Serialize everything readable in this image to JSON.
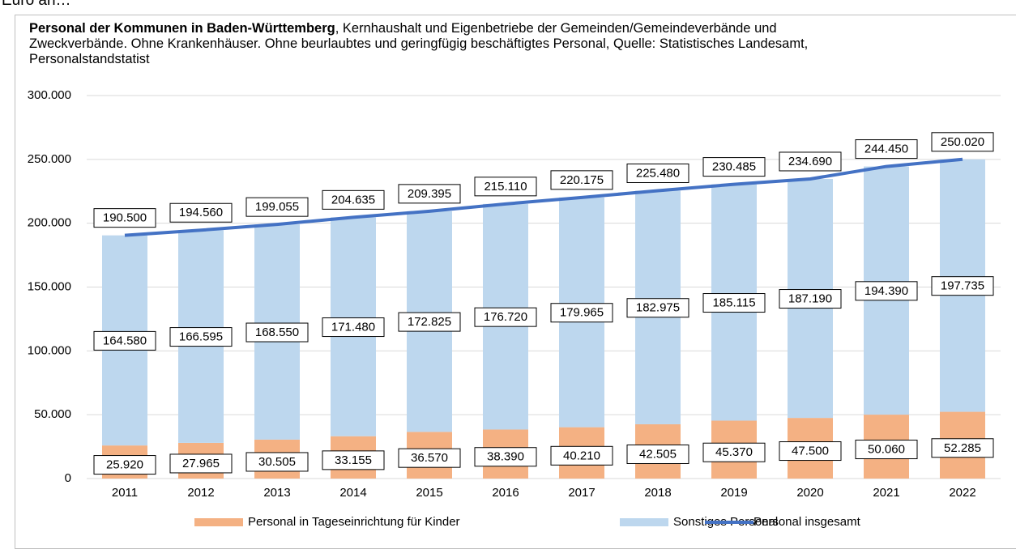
{
  "clipped_text": "Euro an…",
  "chart_data": {
    "type": "bar",
    "stacked": true,
    "title": "Personal der Kommunen in Baden-Württemberg",
    "subtitle": ", Kernhaushalt und Eigenbetriebe der Gemeinden/Gemeindeverbände und Zweckverbände. Ohne Krankenhäuser. Ohne beurlaubtes und geringfügig beschäftigtes Personal, Quelle: Statistisches Landesamt, Personalstandstatist",
    "categories": [
      "2011",
      "2012",
      "2013",
      "2014",
      "2015",
      "2016",
      "2017",
      "2018",
      "2019",
      "2020",
      "2021",
      "2022"
    ],
    "series": [
      {
        "name": "Personal in Tageseinrichtung für Kinder",
        "type": "bar",
        "color": "#f4b183",
        "values": [
          25920,
          27965,
          30505,
          33155,
          36570,
          38390,
          40210,
          42505,
          45370,
          47500,
          50060,
          52285
        ],
        "value_labels": [
          "25.920",
          "27.965",
          "30.505",
          "33.155",
          "36.570",
          "38.390",
          "40.210",
          "42.505",
          "45.370",
          "47.500",
          "50.060",
          "52.285"
        ]
      },
      {
        "name": "Sonstiges Personal",
        "type": "bar",
        "color": "#bdd7ee",
        "values": [
          164580,
          166595,
          168550,
          171480,
          172825,
          176720,
          179965,
          182975,
          185115,
          187190,
          194390,
          197735
        ],
        "value_labels": [
          "164.580",
          "166.595",
          "168.550",
          "171.480",
          "172.825",
          "176.720",
          "179.965",
          "182.975",
          "185.115",
          "187.190",
          "194.390",
          "197.735"
        ]
      },
      {
        "name": "Personal insgesamt",
        "type": "line",
        "color": "#4472c4",
        "values": [
          190500,
          194560,
          199055,
          204635,
          209395,
          215110,
          220175,
          225480,
          230485,
          234690,
          244450,
          250020
        ],
        "value_labels": [
          "190.500",
          "194.560",
          "199.055",
          "204.635",
          "209.395",
          "215.110",
          "220.175",
          "225.480",
          "230.485",
          "234.690",
          "244.450",
          "250.020"
        ]
      }
    ],
    "ylim": [
      0,
      300000
    ],
    "yticks": [
      0,
      {
        "value": 50000,
        "label": "50.000"
      },
      {
        "value": 100000,
        "label": "100.000"
      },
      {
        "value": 150000,
        "label": "150.000"
      },
      {
        "value": 200000,
        "label": "200.000"
      },
      {
        "value": 250000,
        "label": "250.000"
      },
      {
        "value": 300000,
        "label": "300.000"
      }
    ],
    "grid": true,
    "legend": "bottom"
  }
}
